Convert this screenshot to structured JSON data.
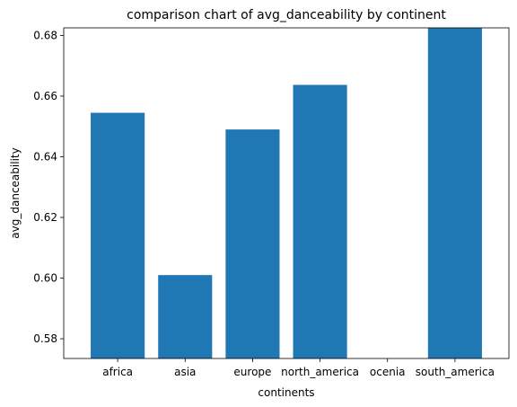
{
  "chart_data": {
    "type": "bar",
    "title": "comparison chart of avg_danceability by continent",
    "xlabel": "continents",
    "ylabel": "avg_danceability",
    "categories": [
      "africa",
      "asia",
      "europe",
      "north_america",
      "ocenia",
      "south_america"
    ],
    "values": [
      0.6545,
      0.601,
      0.649,
      0.6637,
      0.5735,
      0.689
    ],
    "ylim": [
      0.5735,
      0.6825
    ],
    "yticks": [
      "0.58",
      "0.60",
      "0.62",
      "0.64",
      "0.66",
      "0.68"
    ],
    "bar_color": "#1f77b4",
    "grid": false,
    "legend": "none"
  }
}
